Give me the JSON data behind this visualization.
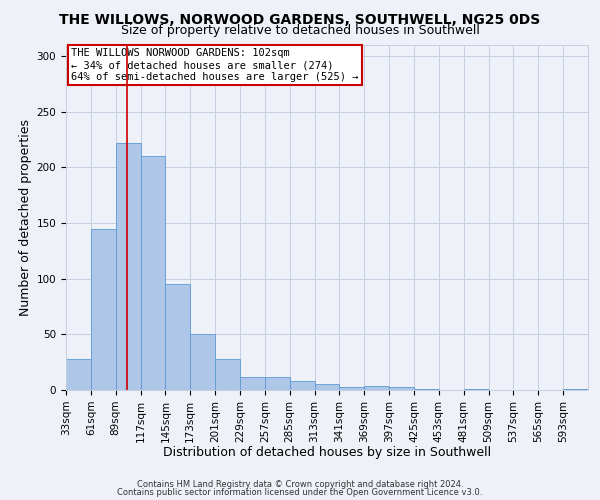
{
  "title": "THE WILLOWS, NORWOOD GARDENS, SOUTHWELL, NG25 0DS",
  "subtitle": "Size of property relative to detached houses in Southwell",
  "xlabel": "Distribution of detached houses by size in Southwell",
  "ylabel": "Number of detached properties",
  "bin_labels": [
    "33sqm",
    "61sqm",
    "89sqm",
    "117sqm",
    "145sqm",
    "173sqm",
    "201sqm",
    "229sqm",
    "257sqm",
    "285sqm",
    "313sqm",
    "341sqm",
    "369sqm",
    "397sqm",
    "425sqm",
    "453sqm",
    "481sqm",
    "509sqm",
    "537sqm",
    "565sqm",
    "593sqm"
  ],
  "bar_values": [
    28,
    145,
    222,
    210,
    95,
    50,
    28,
    12,
    12,
    8,
    5,
    3,
    4,
    3,
    1,
    0,
    1,
    0,
    0,
    0,
    1
  ],
  "bar_color": "#aec6e8",
  "bar_edge_color": "#5b9bd5",
  "vline_x": 102,
  "vline_color": "#cc0000",
  "ylim_max": 310,
  "yticks": [
    0,
    50,
    100,
    150,
    200,
    250,
    300
  ],
  "bin_width": 28,
  "annotation_text": "THE WILLOWS NORWOOD GARDENS: 102sqm\n← 34% of detached houses are smaller (274)\n64% of semi-detached houses are larger (525) →",
  "annotation_box_color": "#ffffff",
  "annotation_box_edge": "#cc0000",
  "footer_line1": "Contains HM Land Registry data © Crown copyright and database right 2024.",
  "footer_line2": "Contains public sector information licensed under the Open Government Licence v3.0.",
  "background_color": "#eef2f8",
  "grid_color": "#c5cfe0",
  "title_fontsize": 10,
  "subtitle_fontsize": 9,
  "axis_label_fontsize": 9,
  "tick_fontsize": 7.5,
  "annotation_fontsize": 7.5,
  "footer_fontsize": 6
}
